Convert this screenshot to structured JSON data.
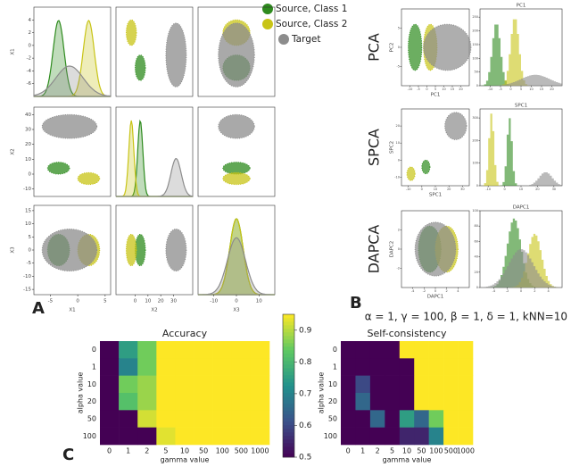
{
  "panel_labels": [
    "A",
    "B",
    "C"
  ],
  "parameters_text": "α = 1, γ = 100, β = 1, δ = 1, kNN=10",
  "chart_data": [
    {
      "type": "scatter-matrix",
      "variables": [
        "X1",
        "X2",
        "X3"
      ],
      "ranges": [
        [
          -8,
          6
        ],
        [
          -15,
          45
        ],
        [
          -17,
          17
        ]
      ],
      "row_ticks": [
        [
          4,
          2,
          0,
          -2,
          -4,
          -6
        ],
        [
          40,
          30,
          20,
          10,
          0,
          -10
        ],
        [
          15,
          10,
          5,
          0,
          -5,
          -10,
          -15
        ]
      ],
      "col_ticks": [
        [
          -5,
          0,
          5
        ],
        [
          0,
          10,
          20,
          30
        ],
        [
          -10,
          0,
          10
        ]
      ],
      "groups": [
        {
          "name": "Source, Class 1",
          "color": "#2e8b1e",
          "mean": [
            -3.5,
            4,
            0
          ],
          "sd": [
            1,
            2,
            3
          ]
        },
        {
          "name": "Source, Class 2",
          "color": "#c8c416",
          "mean": [
            2,
            -3,
            0
          ],
          "sd": [
            1,
            2,
            3
          ]
        },
        {
          "name": "Target",
          "color": "#8c8c8c",
          "mean": [
            -1.5,
            32,
            0
          ],
          "sd": [
            2.5,
            4,
            4
          ]
        }
      ]
    },
    {
      "type": "projections",
      "methods": [
        {
          "name": "PCA",
          "x_label": "PC1",
          "y_label": "PC2",
          "hist_title": "PC1",
          "xlim": [
            -15,
            25
          ],
          "ylim": [
            -10,
            10
          ],
          "xticks": [
            -10,
            -5,
            0,
            5,
            10,
            15,
            20
          ],
          "yticks": [
            -5,
            0,
            5
          ],
          "hist_ylim": [
            0,
            280
          ],
          "hist_yticks": [
            0,
            50,
            100,
            150,
            200,
            250
          ],
          "means": [
            [
              -7,
              0
            ],
            [
              2,
              0
            ],
            [
              12,
              0
            ]
          ],
          "sds": [
            [
              2,
              3
            ],
            [
              2,
              3
            ],
            [
              7,
              3
            ]
          ],
          "peaks": [
            230,
            250,
            40
          ]
        },
        {
          "name": "SPCA",
          "x_label": "SPC1",
          "y_label": "SPC2",
          "hist_title": "SPC1",
          "xlim": [
            -15,
            35
          ],
          "ylim": [
            -15,
            30
          ],
          "xticks": [
            -10,
            0,
            10,
            20,
            30
          ],
          "yticks": [
            -10,
            0,
            10,
            20
          ],
          "hist_ylim": [
            0,
            340
          ],
          "hist_yticks": [
            0,
            100,
            200,
            300
          ],
          "means": [
            [
              3,
              -4
            ],
            [
              -8,
              -8
            ],
            [
              25,
              20
            ]
          ],
          "sds": [
            [
              1.5,
              2
            ],
            [
              1.5,
              2
            ],
            [
              4,
              4
            ]
          ],
          "peaks": [
            300,
            320,
            60
          ]
        },
        {
          "name": "DAPCA",
          "x_label": "DAPC1",
          "y_label": "DAPC2",
          "hist_title": "DAPC1",
          "xlim": [
            -6,
            6
          ],
          "ylim": [
            -4,
            4
          ],
          "xticks": [
            -4,
            -2,
            0,
            2,
            4
          ],
          "yticks": [
            -2,
            0,
            2
          ],
          "hist_ylim": [
            0,
            100
          ],
          "hist_yticks": [
            0,
            20,
            40,
            60,
            80,
            100
          ],
          "means": [
            [
              -1,
              0
            ],
            [
              2,
              0
            ],
            [
              0,
              0
            ]
          ],
          "sds": [
            [
              1,
              1.2
            ],
            [
              1,
              1.2
            ],
            [
              1.8,
              1.4
            ]
          ],
          "peaks": [
            90,
            70,
            50
          ]
        }
      ]
    },
    {
      "type": "heatmap",
      "title": "Accuracy",
      "x_label": "gamma value",
      "y_label": "alpha value",
      "x": [
        0,
        1,
        2,
        5,
        10,
        50,
        100,
        500,
        1000
      ],
      "y": [
        0,
        1,
        10,
        20,
        50,
        100
      ],
      "colormap": "viridis",
      "clim": [
        0.5,
        0.95
      ],
      "colorbar_ticks": [
        0.5,
        0.6,
        0.7,
        0.8,
        0.9
      ],
      "values": [
        [
          0.5,
          0.75,
          0.85,
          0.95,
          0.95,
          0.95,
          0.95,
          0.95,
          0.95
        ],
        [
          0.5,
          0.7,
          0.85,
          0.95,
          0.95,
          0.95,
          0.95,
          0.95,
          0.95
        ],
        [
          0.5,
          0.85,
          0.88,
          0.95,
          0.95,
          0.95,
          0.95,
          0.95,
          0.95
        ],
        [
          0.5,
          0.82,
          0.88,
          0.95,
          0.95,
          0.95,
          0.95,
          0.95,
          0.95
        ],
        [
          0.5,
          0.5,
          0.92,
          0.95,
          0.95,
          0.95,
          0.95,
          0.95,
          0.95
        ],
        [
          0.5,
          0.5,
          0.5,
          0.93,
          0.95,
          0.95,
          0.95,
          0.95,
          0.95
        ]
      ]
    },
    {
      "type": "heatmap",
      "title": "Self-consistency",
      "x_label": "gamma value",
      "y_label": "alpha value",
      "x": [
        0,
        1,
        2,
        5,
        10,
        50,
        100,
        500,
        1000
      ],
      "y": [
        0,
        1,
        10,
        20,
        50,
        100
      ],
      "colormap": "viridis",
      "clim": [
        0.5,
        0.95
      ],
      "values": [
        [
          0.5,
          0.5,
          0.5,
          0.5,
          0.95,
          0.95,
          0.95,
          0.95,
          0.95
        ],
        [
          0.5,
          0.5,
          0.5,
          0.5,
          0.5,
          0.95,
          0.95,
          0.95,
          0.95
        ],
        [
          0.5,
          0.6,
          0.5,
          0.5,
          0.5,
          0.95,
          0.95,
          0.95,
          0.95
        ],
        [
          0.5,
          0.65,
          0.5,
          0.5,
          0.5,
          0.95,
          0.95,
          0.95,
          0.95
        ],
        [
          0.5,
          0.5,
          0.65,
          0.5,
          0.75,
          0.65,
          0.85,
          0.95,
          0.95
        ],
        [
          0.5,
          0.5,
          0.5,
          0.5,
          0.55,
          0.55,
          0.7,
          0.95,
          0.95
        ]
      ]
    }
  ]
}
